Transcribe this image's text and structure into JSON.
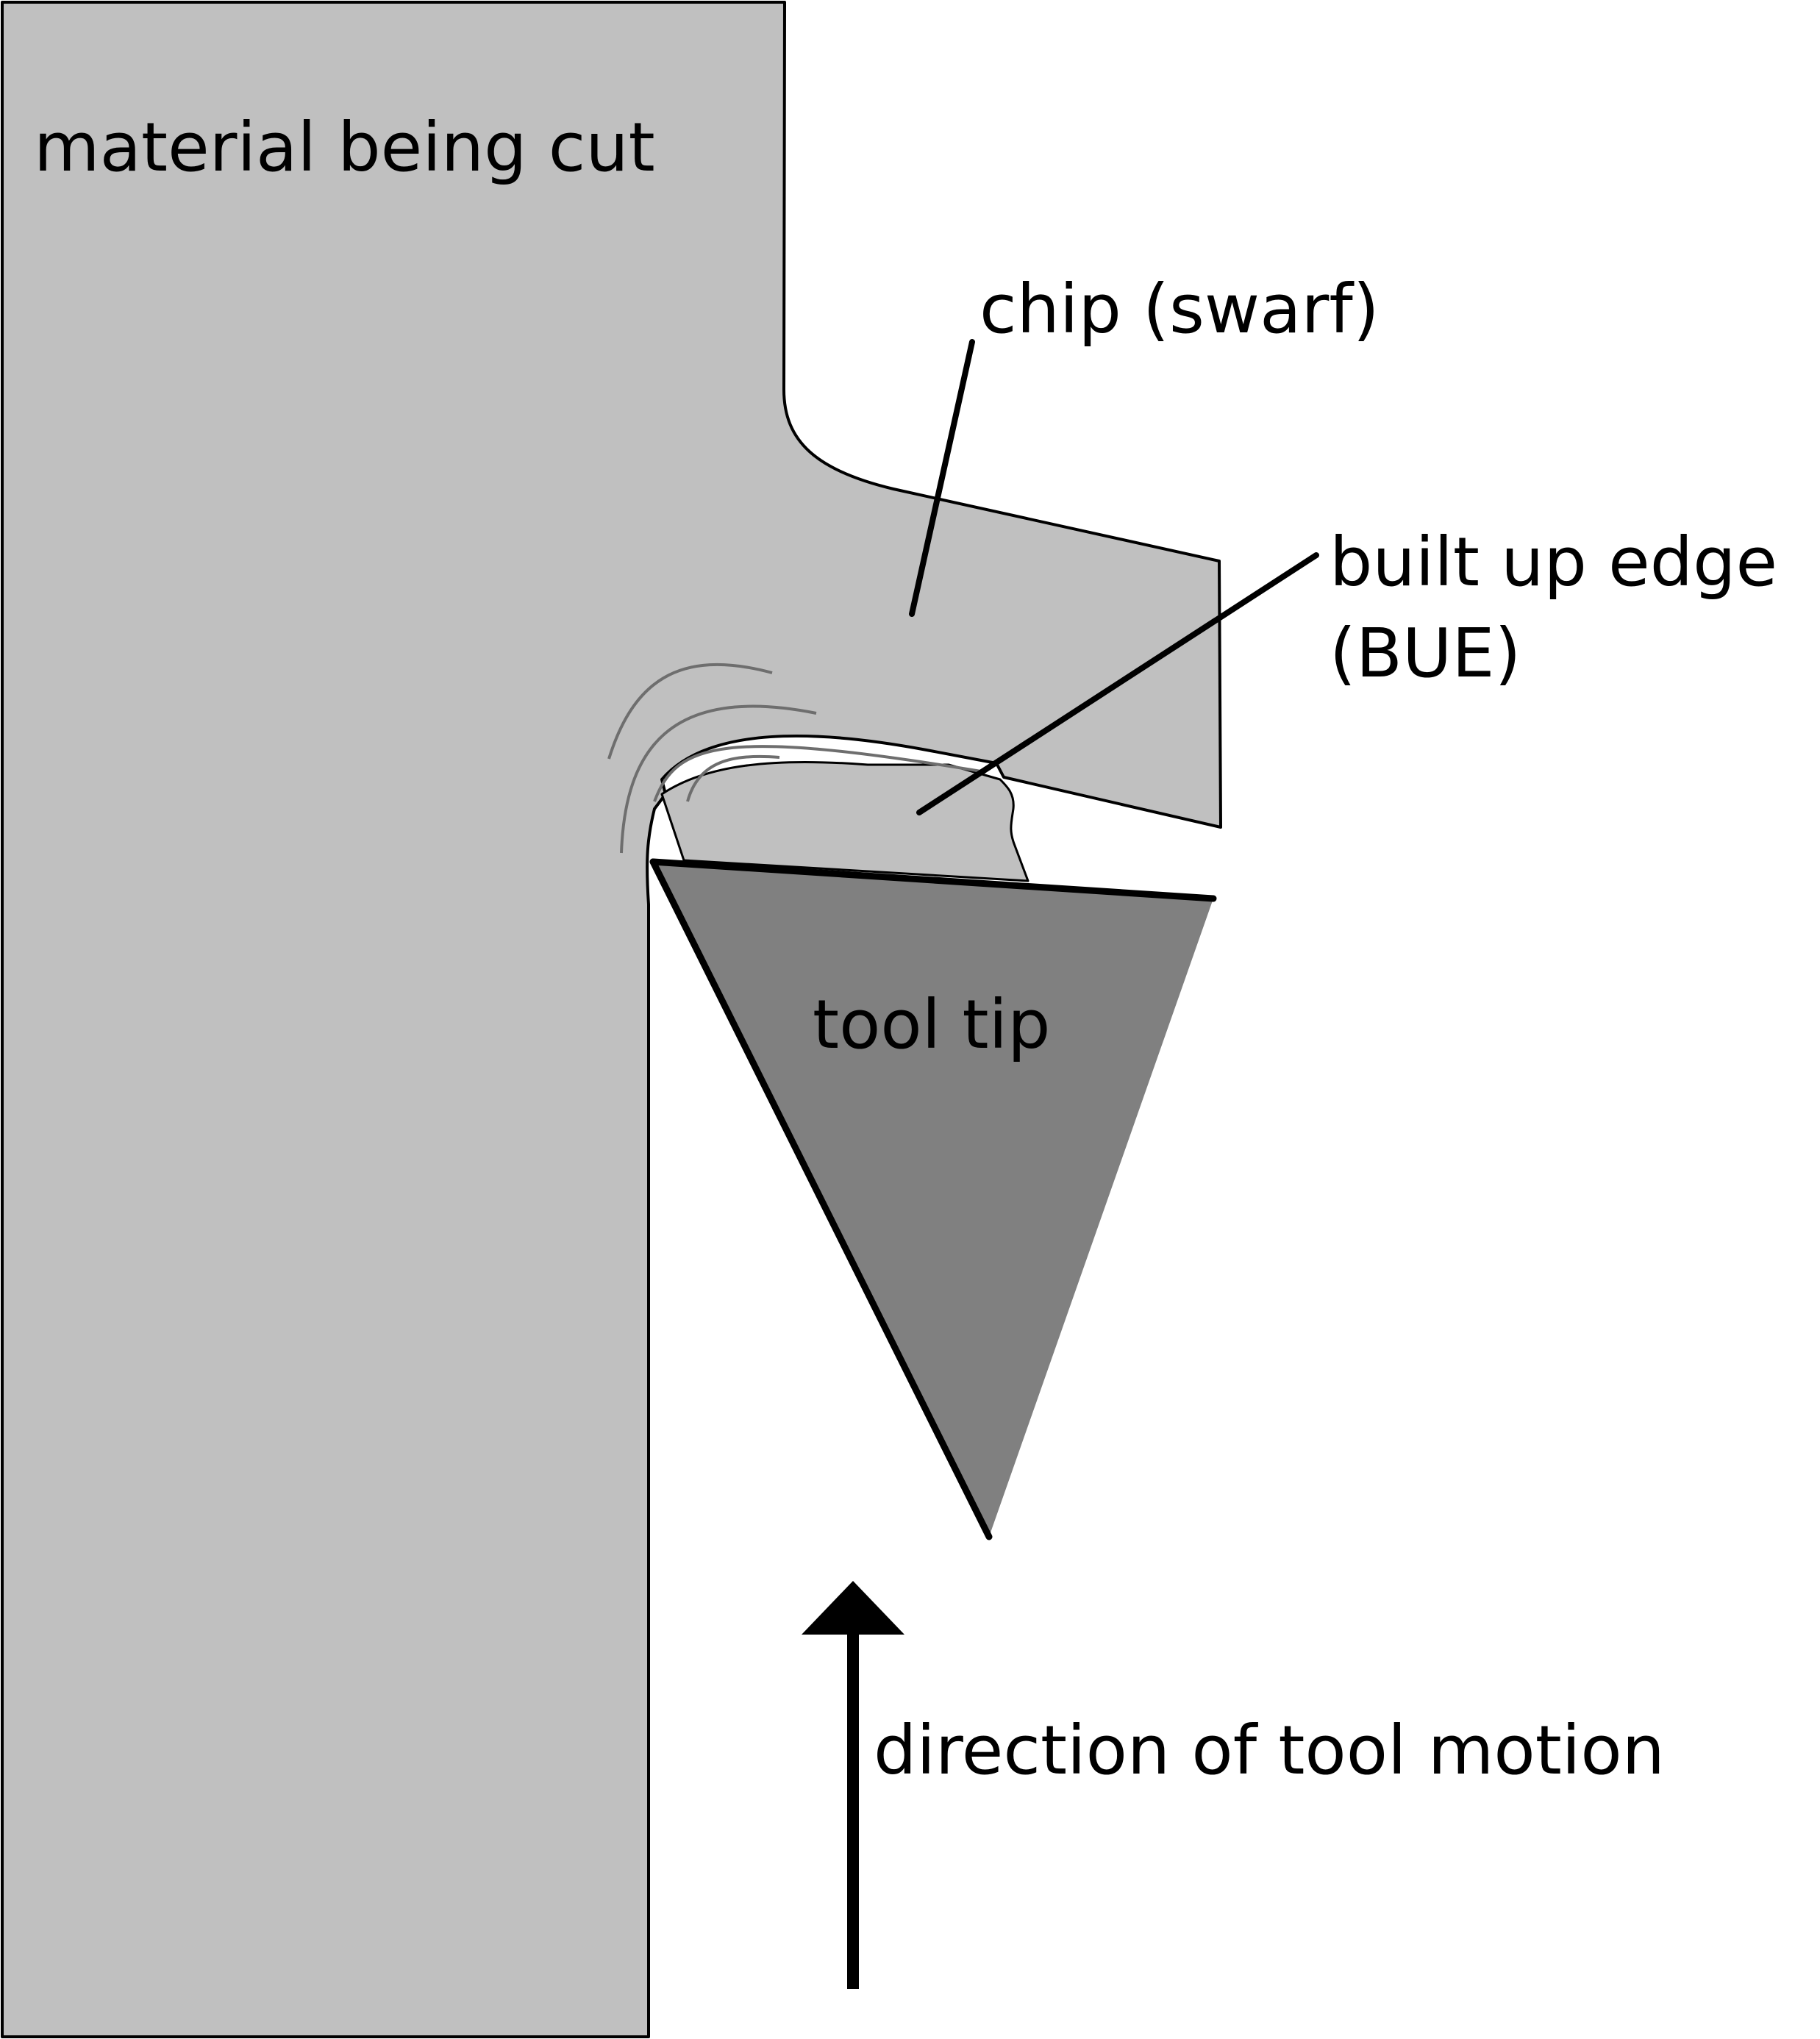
{
  "labels": {
    "material": "material being cut",
    "chip": "chip (swarf)",
    "bue_line1": "built up edge",
    "bue_line2": "(BUE)",
    "tool": "tool tip",
    "motion": "direction of tool motion"
  },
  "colors": {
    "material": "#c0c0c0",
    "tool": "#808080",
    "outline": "#000000",
    "flow_lines": "#6e6e6e",
    "background": "#ffffff"
  },
  "icons": {
    "motion_arrow": "arrow-up-icon"
  }
}
